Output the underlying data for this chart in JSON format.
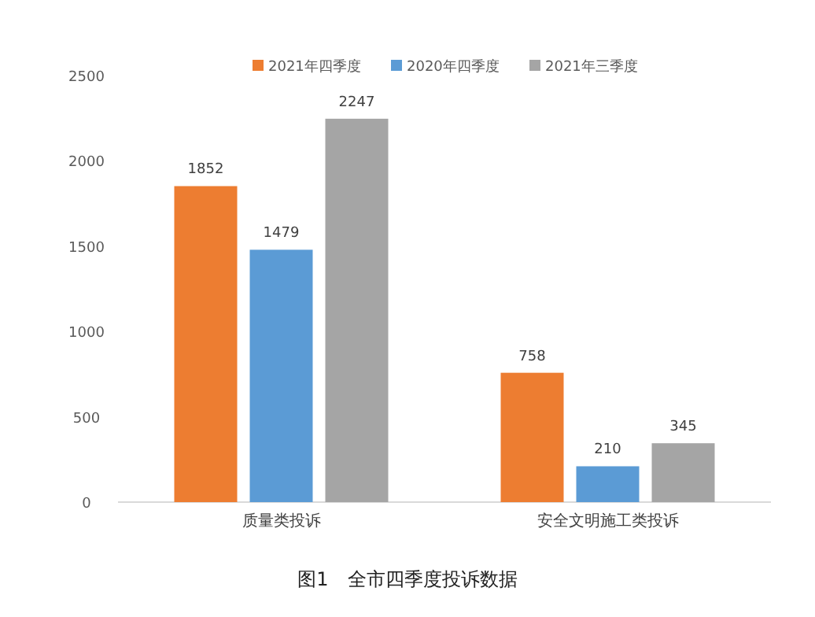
{
  "chart_data": {
    "type": "bar",
    "title": "图1　全市四季度投诉数据",
    "categories": [
      "质量类投诉",
      "安全文明施工类投诉"
    ],
    "series": [
      {
        "name": "2021年四季度",
        "color": "#ed7d31",
        "values": [
          1852,
          758
        ]
      },
      {
        "name": "2020年四季度",
        "color": "#5b9bd5",
        "values": [
          1479,
          210
        ]
      },
      {
        "name": "2021年三季度",
        "color": "#a5a5a5",
        "values": [
          2247,
          345
        ]
      }
    ],
    "ylim": [
      0,
      2500
    ],
    "yticks": [
      0,
      500,
      1000,
      1500,
      2000,
      2500
    ],
    "data_labels": true,
    "legend": "top",
    "grid": false
  }
}
